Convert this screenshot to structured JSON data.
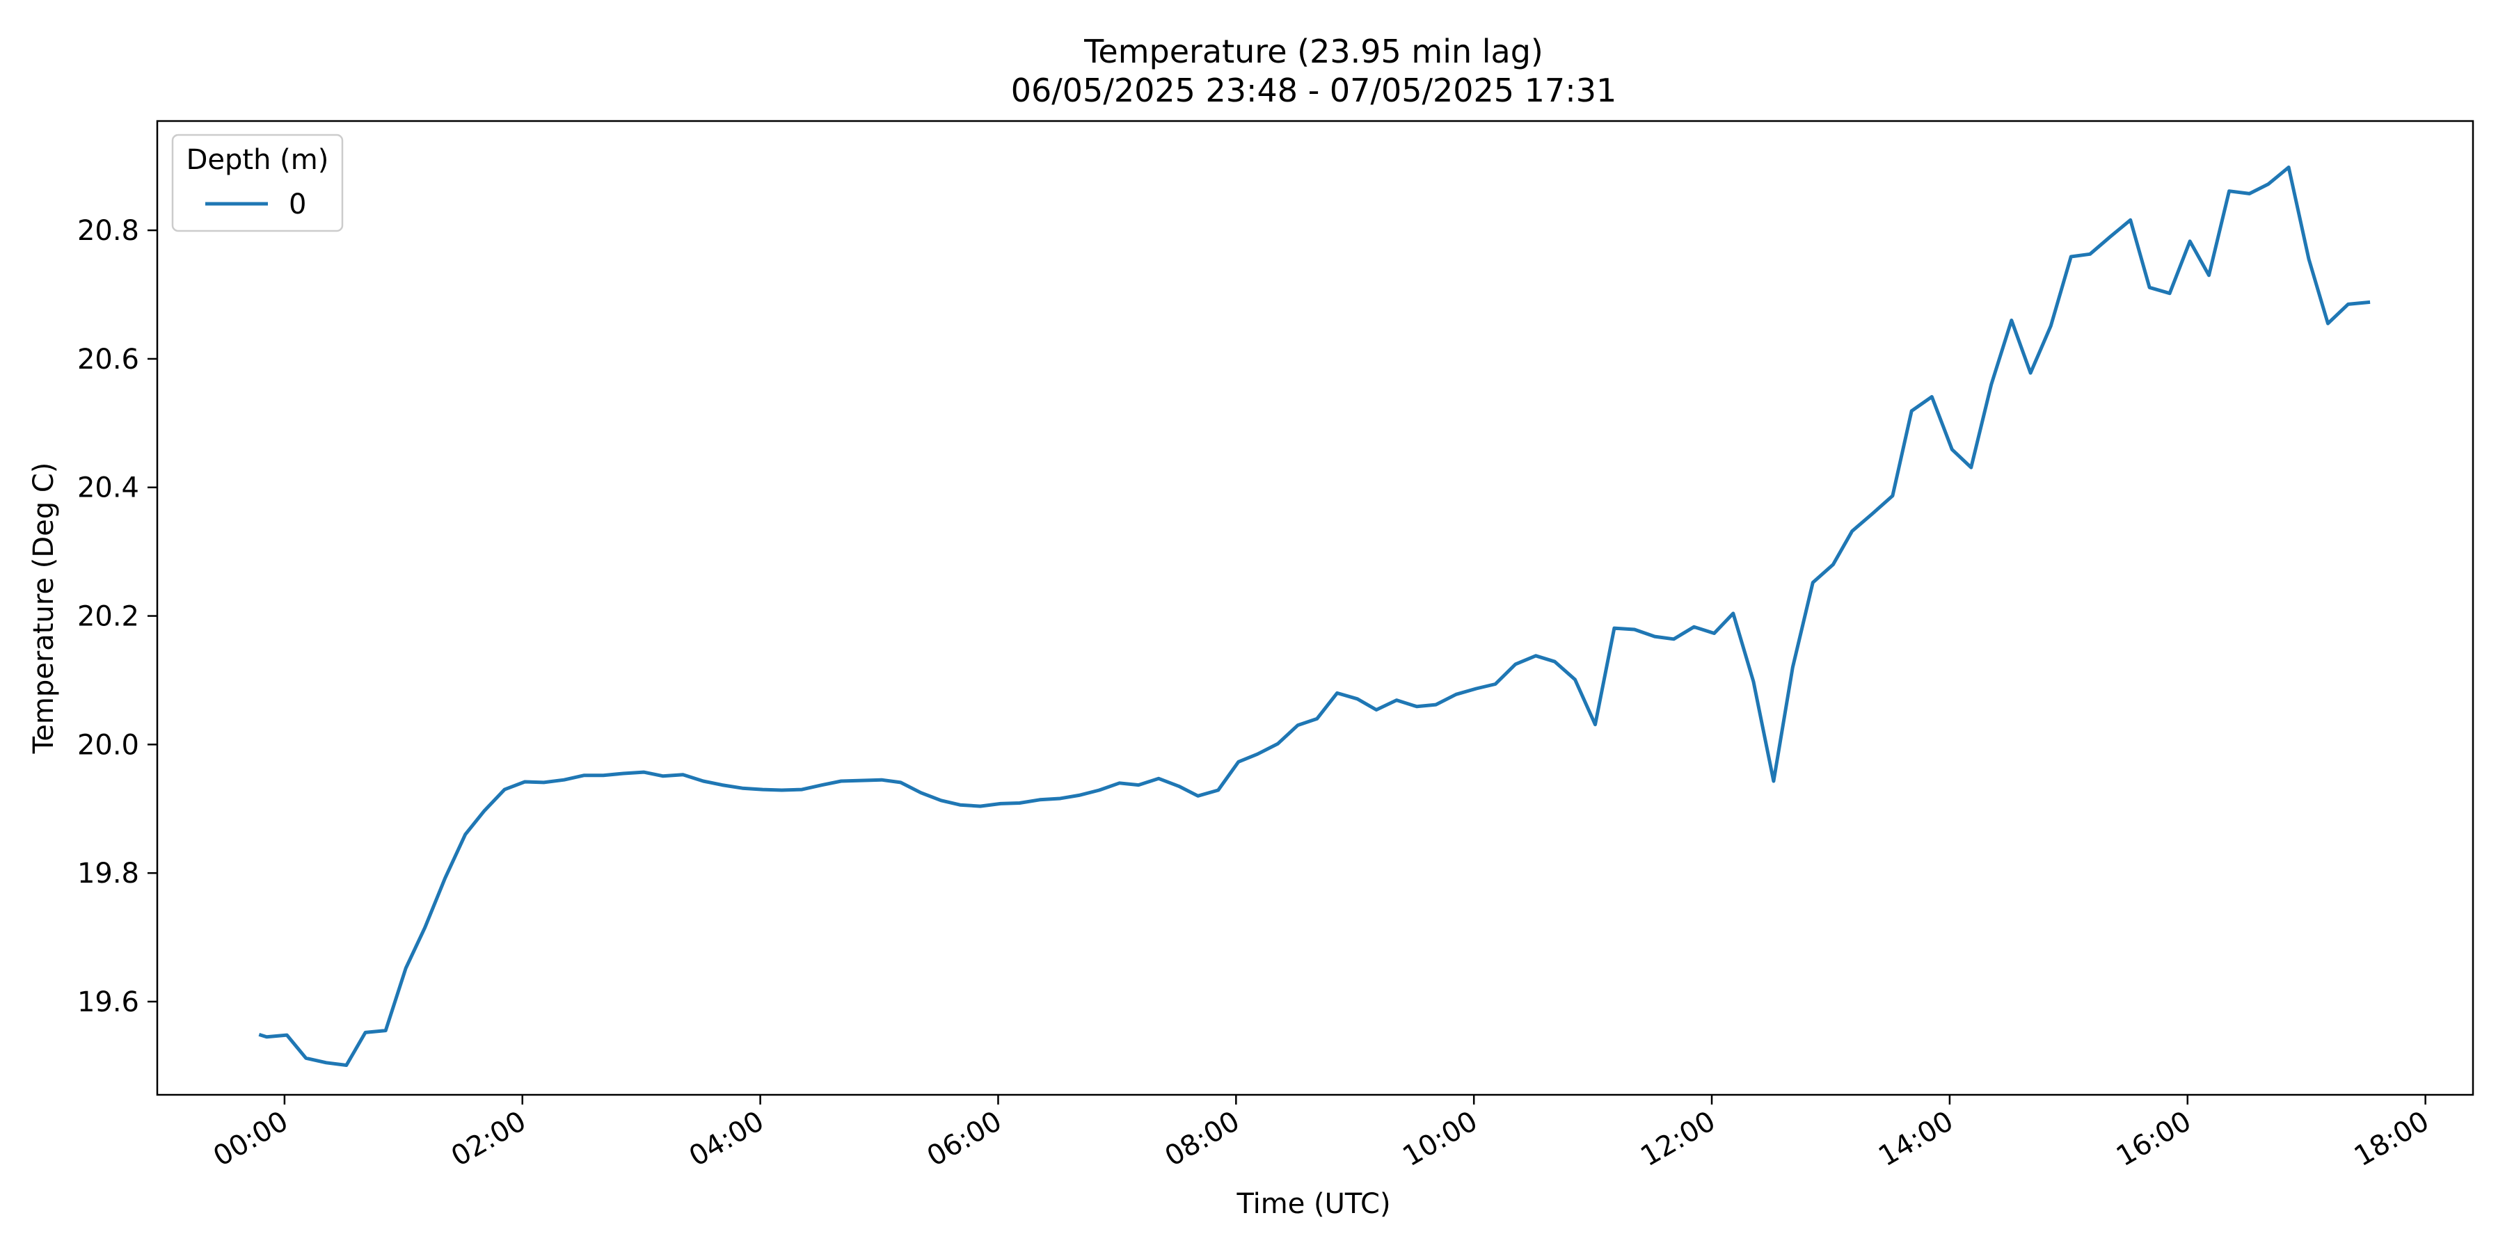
{
  "chart_data": {
    "type": "line",
    "title": "Temperature (23.95 min lag)",
    "subtitle": "06/05/2025 23:48 - 07/05/2025 17:31",
    "xlabel": "Time (UTC)",
    "ylabel": "Temperature (Deg C)",
    "x_unit": "hours after 00:00 UTC, 07/05/2025",
    "xlim": [
      -1.07,
      18.4
    ],
    "ylim": [
      19.455,
      20.97
    ],
    "x_ticks": [
      {
        "value": 0,
        "label": "00:00"
      },
      {
        "value": 2,
        "label": "02:00"
      },
      {
        "value": 4,
        "label": "04:00"
      },
      {
        "value": 6,
        "label": "06:00"
      },
      {
        "value": 8,
        "label": "08:00"
      },
      {
        "value": 10,
        "label": "10:00"
      },
      {
        "value": 12,
        "label": "12:00"
      },
      {
        "value": 14,
        "label": "14:00"
      },
      {
        "value": 16,
        "label": "16:00"
      },
      {
        "value": 18,
        "label": "18:00"
      }
    ],
    "y_ticks": [
      {
        "value": 19.6,
        "label": "19.6"
      },
      {
        "value": 19.8,
        "label": "19.8"
      },
      {
        "value": 20.0,
        "label": "20.0"
      },
      {
        "value": 20.2,
        "label": "20.2"
      },
      {
        "value": 20.4,
        "label": "20.4"
      },
      {
        "value": 20.6,
        "label": "20.6"
      },
      {
        "value": 20.8,
        "label": "20.8"
      }
    ],
    "grid": false,
    "legend": {
      "title": "Depth (m)",
      "placement": "top-left"
    },
    "series": [
      {
        "name": "0",
        "color": "#1f77b4",
        "x": [
          -0.2,
          -0.15,
          0.02,
          0.18,
          0.35,
          0.52,
          0.68,
          0.85,
          1.02,
          1.18,
          1.35,
          1.52,
          1.68,
          1.85,
          2.02,
          2.18,
          2.35,
          2.52,
          2.68,
          2.85,
          3.02,
          3.18,
          3.35,
          3.52,
          3.68,
          3.85,
          4.02,
          4.18,
          4.35,
          4.52,
          4.68,
          4.85,
          5.02,
          5.18,
          5.35,
          5.52,
          5.68,
          5.85,
          6.02,
          6.18,
          6.35,
          6.52,
          6.68,
          6.85,
          7.02,
          7.18,
          7.35,
          7.52,
          7.68,
          7.85,
          8.02,
          8.18,
          8.35,
          8.52,
          8.68,
          8.85,
          9.02,
          9.18,
          9.35,
          9.52,
          9.68,
          9.85,
          10.02,
          10.18,
          10.35,
          10.52,
          10.68,
          10.85,
          11.02,
          11.18,
          11.35,
          11.52,
          11.68,
          11.85,
          12.02,
          12.18,
          12.35,
          12.52,
          12.68,
          12.85,
          13.02,
          13.18,
          13.35,
          13.52,
          13.68,
          13.85,
          14.02,
          14.18,
          14.35,
          14.52,
          14.68,
          14.85,
          15.02,
          15.18,
          15.35,
          15.52,
          15.68,
          15.85,
          16.02,
          16.18,
          16.35,
          16.52,
          16.68,
          16.85,
          17.02,
          17.18,
          17.35,
          17.52
        ],
        "y": [
          19.548,
          19.545,
          19.548,
          19.512,
          19.505,
          19.501,
          19.552,
          19.555,
          19.652,
          19.715,
          19.792,
          19.86,
          19.897,
          19.93,
          19.942,
          19.941,
          19.945,
          19.952,
          19.952,
          19.955,
          19.957,
          19.951,
          19.953,
          19.943,
          19.937,
          19.932,
          19.93,
          19.929,
          19.93,
          19.937,
          19.943,
          19.944,
          19.945,
          19.941,
          19.925,
          19.913,
          19.906,
          19.904,
          19.908,
          19.909,
          19.914,
          19.916,
          19.921,
          19.929,
          19.94,
          19.937,
          19.947,
          19.935,
          19.92,
          19.929,
          19.973,
          19.985,
          20.001,
          20.03,
          20.04,
          20.08,
          20.071,
          20.054,
          20.069,
          20.059,
          20.062,
          20.078,
          20.087,
          20.094,
          20.125,
          20.138,
          20.129,
          20.101,
          20.031,
          20.181,
          20.179,
          20.168,
          20.164,
          20.183,
          20.173,
          20.204,
          20.098,
          19.943,
          20.12,
          20.252,
          20.28,
          20.332,
          20.359,
          20.387,
          20.519,
          20.541,
          20.459,
          20.431,
          20.56,
          20.66,
          20.578,
          20.651,
          20.759,
          20.763,
          20.79,
          20.816,
          20.711,
          20.702,
          20.783,
          20.73,
          20.861,
          20.857,
          20.872,
          20.898,
          20.755,
          20.655,
          20.685,
          20.688
        ]
      }
    ]
  }
}
